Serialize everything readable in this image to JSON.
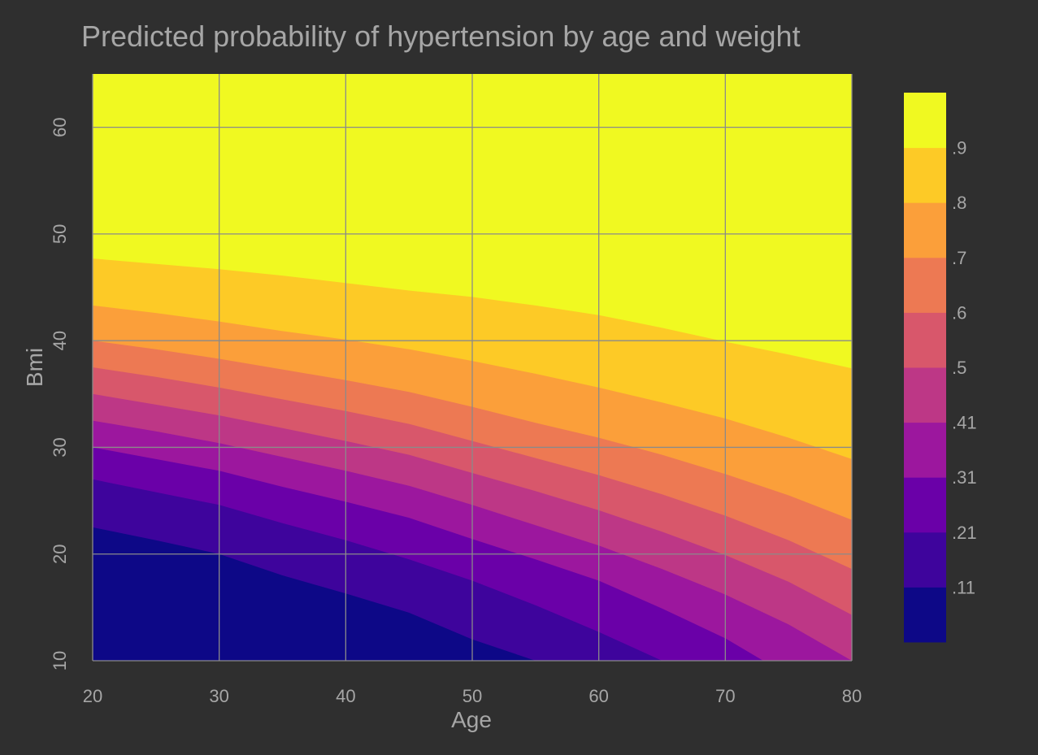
{
  "chart_data": {
    "type": "contour",
    "title": "Predicted probability of hypertension by age and weight",
    "xlabel": "Age",
    "ylabel": "Bmi",
    "xlim": [
      20,
      80
    ],
    "ylim": [
      10,
      65
    ],
    "x_ticks": [
      "20",
      "30",
      "40",
      "50",
      "60",
      "70",
      "80"
    ],
    "y_ticks": [
      "10",
      "20",
      "30",
      "40",
      "50",
      "60"
    ],
    "x_tick_values": [
      20,
      30,
      40,
      50,
      60,
      70,
      80
    ],
    "y_tick_values": [
      10,
      20,
      30,
      40,
      50,
      60
    ],
    "grid": true,
    "legend_placement": "right",
    "contour_levels": [
      {
        "level": ".11",
        "x": [
          20,
          25,
          30,
          35,
          40,
          45,
          50,
          55
        ],
        "y": [
          22.5,
          21.3,
          20,
          18,
          16.3,
          14.5,
          12,
          10
        ]
      },
      {
        "level": ".21",
        "x": [
          20,
          25,
          30,
          35,
          40,
          45,
          50,
          55,
          60,
          65
        ],
        "y": [
          27,
          25.8,
          24.6,
          22.9,
          21.3,
          19.5,
          17.5,
          15.2,
          12.7,
          10
        ]
      },
      {
        "level": ".31",
        "x": [
          20,
          25,
          30,
          35,
          40,
          45,
          50,
          55,
          60,
          65,
          70,
          73
        ],
        "y": [
          30,
          28.9,
          27.8,
          26.3,
          24.9,
          23.4,
          21.4,
          19.5,
          17.5,
          14.9,
          12.1,
          10
        ]
      },
      {
        "level": ".41",
        "x": [
          20,
          25,
          30,
          35,
          40,
          45,
          50,
          55,
          60,
          65,
          70,
          75,
          80
        ],
        "y": [
          32.5,
          31.5,
          30.4,
          29.1,
          27.8,
          26.4,
          24.6,
          22.7,
          20.8,
          18.6,
          16.2,
          13.4,
          10
        ]
      },
      {
        "level": ".5",
        "x": [
          20,
          25,
          30,
          35,
          40,
          45,
          50,
          55,
          60,
          65,
          70,
          75,
          80
        ],
        "y": [
          35,
          34,
          33,
          31.8,
          30.6,
          29.3,
          27.6,
          25.9,
          24.1,
          22.1,
          19.9,
          17.4,
          14.3
        ]
      },
      {
        "level": ".6",
        "x": [
          20,
          25,
          30,
          35,
          40,
          45,
          50,
          55,
          60,
          65,
          70,
          75,
          80
        ],
        "y": [
          37.5,
          36.6,
          35.6,
          34.5,
          33.4,
          32.2,
          30.6,
          29,
          27.4,
          25.6,
          23.6,
          21.3,
          18.6
        ]
      },
      {
        "level": ".7",
        "x": [
          20,
          25,
          30,
          35,
          40,
          45,
          50,
          55,
          60,
          65,
          70,
          75,
          80
        ],
        "y": [
          40,
          39.2,
          38.3,
          37.3,
          36.3,
          35.2,
          33.8,
          32.3,
          30.9,
          29.3,
          27.5,
          25.5,
          23.2
        ]
      },
      {
        "level": ".8",
        "x": [
          20,
          25,
          30,
          35,
          40,
          45,
          50,
          55,
          60,
          65,
          70,
          75,
          80
        ],
        "y": [
          43.3,
          42.6,
          41.8,
          40.9,
          40.1,
          39.2,
          38.1,
          36.9,
          35.6,
          34.2,
          32.7,
          30.9,
          28.9
        ]
      },
      {
        "level": ".9",
        "x": [
          20,
          25,
          30,
          35,
          40,
          45,
          50,
          55,
          60,
          65,
          70,
          75,
          80
        ],
        "y": [
          47.7,
          47.2,
          46.7,
          46.1,
          45.4,
          44.7,
          44.1,
          43.3,
          42.4,
          41.2,
          39.9,
          38.7,
          37.4
        ]
      }
    ],
    "bands": [
      {
        "label": "",
        "color": "#0d0887"
      },
      {
        "label": ".11",
        "color": "#3e049c"
      },
      {
        "label": ".21",
        "color": "#6a00a8"
      },
      {
        "label": ".31",
        "color": "#9c179e"
      },
      {
        "label": ".41",
        "color": "#bd3786"
      },
      {
        "label": ".5",
        "color": "#d8576b"
      },
      {
        "label": ".6",
        "color": "#ed7953"
      },
      {
        "label": ".7",
        "color": "#fb9f3a"
      },
      {
        "label": ".8",
        "color": "#fdca26"
      },
      {
        "label": ".9",
        "color": "#f0f921"
      }
    ]
  },
  "colors": {
    "background": "#2f2f2f",
    "text": "#a6a6a6",
    "grid": "#8a8a8a"
  }
}
